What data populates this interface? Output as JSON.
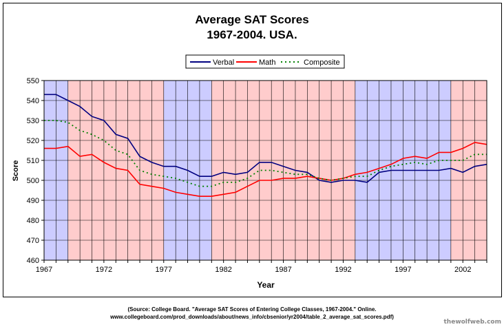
{
  "chart_data": {
    "type": "line",
    "title": "Average SAT Scores",
    "subtitle": "1967-2004. USA.",
    "xlabel": "Year",
    "ylabel": "Score",
    "xlim": [
      1967,
      2004
    ],
    "ylim": [
      460,
      550
    ],
    "y_ticks": [
      "460",
      "470",
      "480",
      "490",
      "500",
      "510",
      "520",
      "530",
      "540",
      "550"
    ],
    "x_ticks": [
      "1967",
      "1972",
      "1977",
      "1982",
      "1987",
      "1992",
      "1997",
      "2002"
    ],
    "legend_position": "top-center",
    "grid": true,
    "x": [
      1967,
      1968,
      1969,
      1970,
      1971,
      1972,
      1973,
      1974,
      1975,
      1976,
      1977,
      1978,
      1979,
      1980,
      1981,
      1982,
      1983,
      1984,
      1985,
      1986,
      1987,
      1988,
      1989,
      1990,
      1991,
      1992,
      1993,
      1994,
      1995,
      1996,
      1997,
      1998,
      1999,
      2000,
      2001,
      2002,
      2003,
      2004
    ],
    "series": [
      {
        "name": "Verbal",
        "style": "solid",
        "color": "#000080",
        "values": [
          543,
          543,
          540,
          537,
          532,
          530,
          523,
          521,
          512,
          509,
          507,
          507,
          505,
          502,
          502,
          504,
          503,
          504,
          509,
          509,
          507,
          505,
          504,
          500,
          499,
          500,
          500,
          499,
          504,
          505,
          505,
          505,
          505,
          505,
          506,
          504,
          507,
          508
        ]
      },
      {
        "name": "Math",
        "style": "solid",
        "color": "#ff0000",
        "values": [
          516,
          516,
          517,
          512,
          513,
          509,
          506,
          505,
          498,
          497,
          496,
          494,
          493,
          492,
          492,
          493,
          494,
          497,
          500,
          500,
          501,
          501,
          502,
          501,
          500,
          501,
          503,
          504,
          506,
          508,
          511,
          512,
          511,
          514,
          514,
          516,
          519,
          518
        ]
      },
      {
        "name": "Composite",
        "style": "dotted",
        "color": "#008000",
        "values": [
          530,
          530,
          529,
          525,
          523,
          520,
          515,
          513,
          505,
          503,
          502,
          501,
          499,
          497,
          497,
          499,
          499,
          501,
          505,
          505,
          504,
          503,
          503,
          501,
          500,
          501,
          502,
          502,
          505,
          507,
          508,
          509,
          508,
          510,
          510,
          510,
          513,
          513
        ]
      }
    ],
    "background_bands": [
      {
        "from": 1967,
        "to": 1969,
        "color": "#ccccff"
      },
      {
        "from": 1969,
        "to": 1977,
        "color": "#ffcccc"
      },
      {
        "from": 1977,
        "to": 1981,
        "color": "#ccccff"
      },
      {
        "from": 1981,
        "to": 1993,
        "color": "#ffcccc"
      },
      {
        "from": 1993,
        "to": 2001,
        "color": "#ccccff"
      },
      {
        "from": 2001,
        "to": 2004,
        "color": "#ffcccc"
      }
    ]
  },
  "source_line1": "(Source: College Board. \"Average SAT Scores of Entering College Classes, 1967-2004.\" Online.",
  "source_line2": "www.collegeboard.com/prod_downloads/about/news_info/cbsenior/yr2004/table_2_average_sat_scores.pdf)",
  "watermark": "thewolfweb.com"
}
